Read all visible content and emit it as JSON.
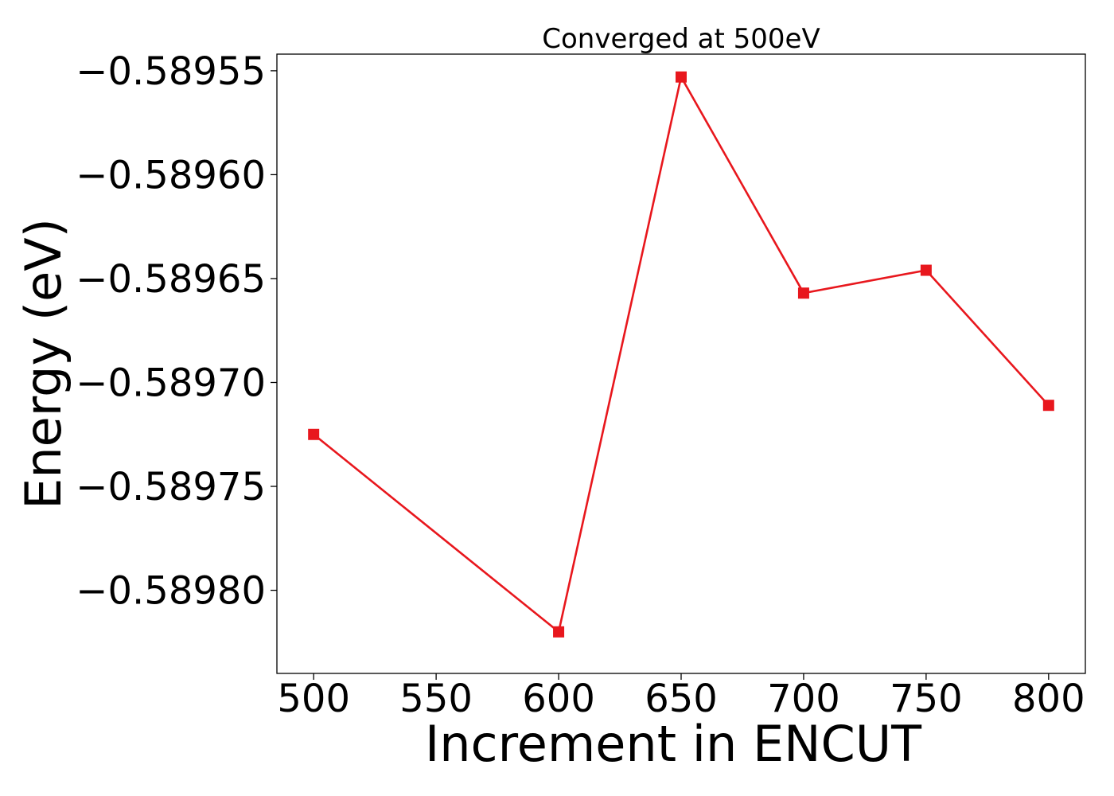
{
  "chart_data": {
    "type": "line",
    "title": "Converged at 500eV",
    "xlabel": "Increment in ENCUT",
    "ylabel": "Energy (eV)",
    "x": [
      500,
      600,
      650,
      700,
      750,
      800
    ],
    "series": [
      {
        "values": [
          -0.589725,
          -0.58982,
          -0.589553,
          -0.589657,
          -0.589646,
          -0.589711
        ],
        "color": "#e8171d",
        "marker": "square"
      }
    ],
    "xlim": [
      485,
      815
    ],
    "ylim": [
      -0.58984,
      -0.589542
    ],
    "xticks": [
      500,
      550,
      600,
      650,
      700,
      750,
      800
    ],
    "xtick_labels": [
      "500",
      "550",
      "600",
      "650",
      "700",
      "750",
      "800"
    ],
    "yticks": [
      -0.58955,
      -0.5896,
      -0.58965,
      -0.5897,
      -0.58975,
      -0.5898
    ],
    "ytick_labels": [
      "−0.58955",
      "−0.58960",
      "−0.58965",
      "−0.58970",
      "−0.58975",
      "−0.58980"
    ],
    "grid": false,
    "legend": "none"
  }
}
